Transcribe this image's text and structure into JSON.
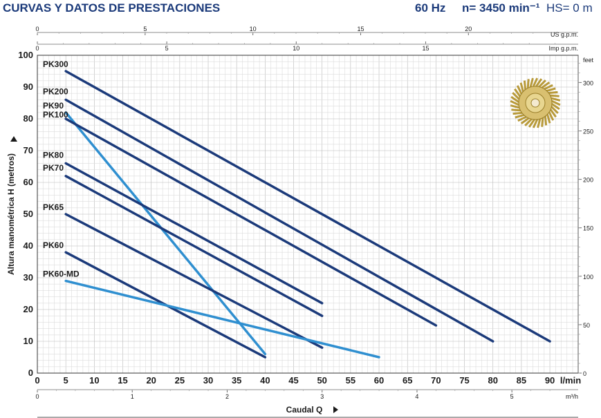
{
  "header": {
    "title": "CURVAS Y DATOS DE PRESTACIONES",
    "frequency": "60 Hz",
    "speed": "n= 3450 min⁻¹",
    "hs": "HS= 0 m"
  },
  "chart_data": {
    "type": "line",
    "xlabel": "Caudal Q",
    "x_unit": "l/min",
    "ylabel": "Altura manométrica H (metros)",
    "xlim": [
      0,
      95
    ],
    "ylim": [
      0,
      100
    ],
    "x_ticks": [
      0,
      5,
      10,
      15,
      20,
      25,
      30,
      35,
      40,
      45,
      50,
      55,
      60,
      65,
      70,
      75,
      80,
      85,
      90
    ],
    "y_ticks": [
      0,
      10,
      20,
      30,
      40,
      50,
      60,
      70,
      80,
      90,
      100
    ],
    "secondary_axes": {
      "us_gpm": {
        "label": "US g.p.m.",
        "ticks": [
          0,
          5,
          10,
          15,
          20
        ]
      },
      "imp_gpm": {
        "label": "Imp g.p.m.",
        "ticks": [
          0,
          5,
          10,
          15
        ]
      },
      "m3h": {
        "label": "m³/h",
        "ticks": [
          0,
          1,
          2,
          3,
          4,
          5
        ]
      },
      "feet": {
        "label": "feet",
        "ticks": [
          0,
          50,
          100,
          150,
          200,
          250,
          300
        ]
      }
    },
    "series": [
      {
        "name": "PK300",
        "color": "#1b3a7a",
        "x": [
          5,
          90
        ],
        "y": [
          95,
          10
        ]
      },
      {
        "name": "PK200",
        "color": "#1b3a7a",
        "x": [
          5,
          80
        ],
        "y": [
          86,
          10
        ]
      },
      {
        "name": "PK90",
        "color": "#2f8fd0",
        "x": [
          5,
          40
        ],
        "y": [
          82,
          6
        ]
      },
      {
        "name": "PK100",
        "color": "#1b3a7a",
        "x": [
          5,
          70
        ],
        "y": [
          80,
          15
        ]
      },
      {
        "name": "PK80",
        "color": "#1b3a7a",
        "x": [
          5,
          50
        ],
        "y": [
          66,
          22
        ]
      },
      {
        "name": "PK70",
        "color": "#1b3a7a",
        "x": [
          5,
          50
        ],
        "y": [
          62,
          18
        ]
      },
      {
        "name": "PK65",
        "color": "#1b3a7a",
        "x": [
          5,
          50
        ],
        "y": [
          50,
          8
        ]
      },
      {
        "name": "PK60",
        "color": "#1b3a7a",
        "x": [
          5,
          40
        ],
        "y": [
          38,
          5
        ]
      },
      {
        "name": "PK60-MD",
        "color": "#2f8fd0",
        "x": [
          5,
          60
        ],
        "y": [
          29,
          5
        ]
      }
    ]
  }
}
